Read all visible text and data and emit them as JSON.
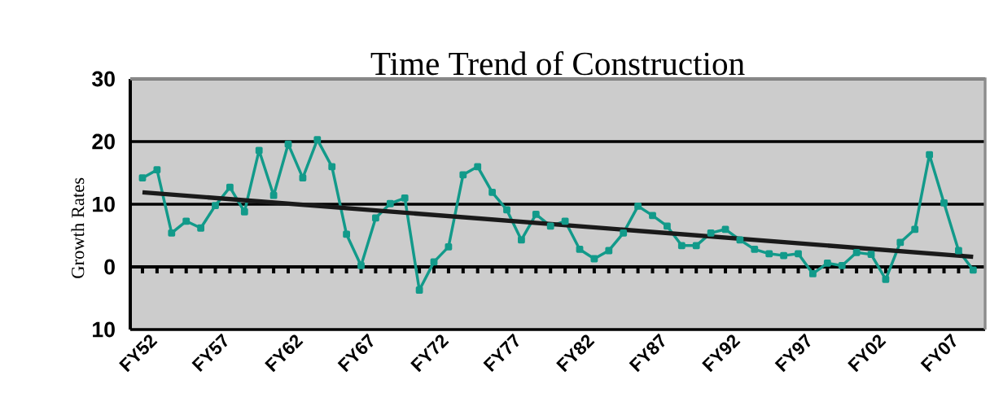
{
  "chart_data": {
    "type": "line",
    "title": "Time Trend of Construction",
    "ylabel": "Growth Rates",
    "categories": [
      "FY52",
      null,
      null,
      null,
      null,
      "FY57",
      null,
      null,
      null,
      null,
      "FY62",
      null,
      null,
      null,
      null,
      "FY67",
      null,
      null,
      null,
      null,
      "FY72",
      null,
      null,
      null,
      null,
      "FY77",
      null,
      null,
      null,
      null,
      "FY82",
      null,
      null,
      null,
      null,
      "FY87",
      null,
      null,
      null,
      null,
      "FY92",
      null,
      null,
      null,
      null,
      "FY97",
      null,
      null,
      null,
      null,
      "FY02",
      null,
      null,
      null,
      null,
      "FY07",
      null,
      null
    ],
    "series": [
      {
        "color": "#129a8a",
        "marker": "square",
        "values": [
          14.2,
          15.5,
          5.4,
          7.3,
          6.2,
          9.8,
          12.7,
          8.8,
          18.6,
          11.4,
          19.6,
          14.2,
          20.3,
          16.0,
          5.2,
          0.2,
          7.8,
          10.1,
          11.0,
          -3.7,
          0.8,
          3.2,
          14.7,
          16.0,
          11.9,
          9.1,
          4.3,
          8.4,
          6.5,
          7.3,
          2.8,
          1.3,
          2.6,
          5.4,
          9.7,
          8.2,
          6.5,
          3.4,
          3.4,
          5.4,
          6.0,
          4.3,
          2.8,
          2.1,
          1.8,
          2.1,
          -1.1,
          0.6,
          0.2,
          2.3,
          2.0,
          -2.0,
          3.9,
          6.0,
          17.9,
          10.2,
          2.6,
          -0.5
        ]
      },
      {
        "color": "#1a1a1a",
        "marker": "none",
        "values": [
          11.9,
          null,
          null,
          null,
          null,
          null,
          null,
          null,
          null,
          null,
          null,
          null,
          null,
          null,
          null,
          null,
          null,
          null,
          null,
          null,
          null,
          null,
          null,
          null,
          null,
          null,
          null,
          null,
          null,
          null,
          null,
          null,
          null,
          null,
          null,
          null,
          null,
          null,
          null,
          null,
          null,
          null,
          null,
          null,
          null,
          null,
          null,
          null,
          null,
          null,
          null,
          null,
          null,
          null,
          null,
          null,
          null,
          1.6
        ]
      }
    ],
    "ylim": [
      -10,
      30
    ],
    "yticks": [
      30,
      20,
      10,
      0,
      {
        "value": -10,
        "label": "10"
      }
    ],
    "grid": "y"
  }
}
